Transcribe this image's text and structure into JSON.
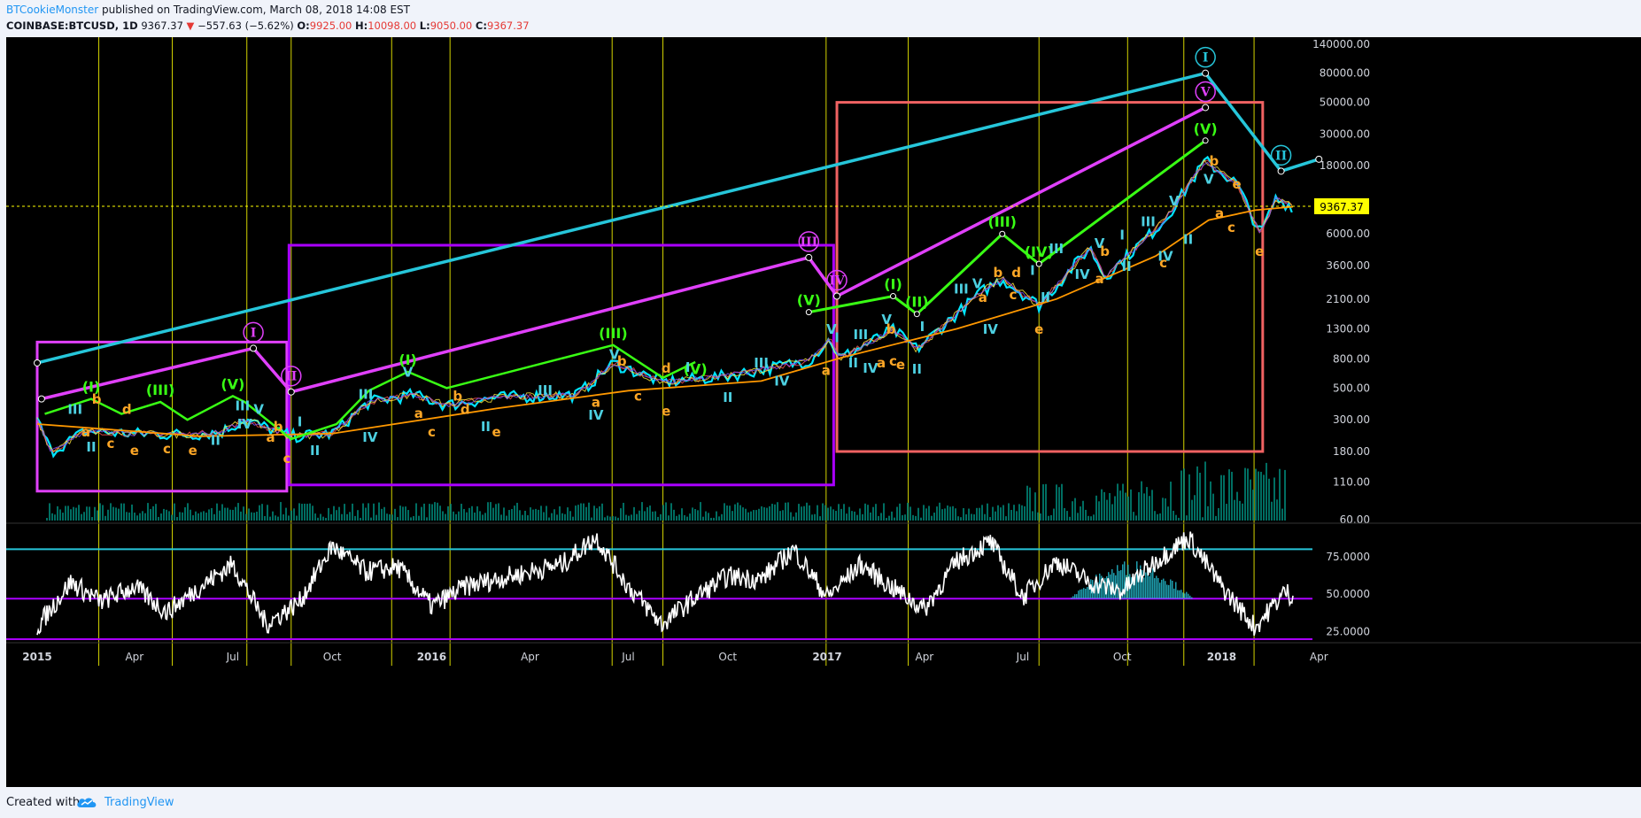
{
  "header": {
    "author": "BTCookieMonster",
    "published_text": " published on TradingView.com, March 08, 2018 14:08 EST",
    "symbol": "COINBASE:BTCUSD, 1D",
    "last": "9367.37",
    "change_arrow": "▼",
    "change": "−557.63 (−5.62%)",
    "o_label": "O:",
    "o_value": "9925.00",
    "h_label": "H:",
    "h_value": "10098.00",
    "l_label": "L:",
    "l_value": "9050.00",
    "c_label": "C:",
    "c_value": "9367.37"
  },
  "footer": {
    "created_with": "Created with",
    "brand": "TradingView"
  },
  "colors": {
    "background": "#000000",
    "price_ema_1": "#00e5ff",
    "price_ema_2": "#ff9800",
    "wave_cycle": "#26c6da",
    "wave_primary": "#e040fb",
    "wave_intermediate": "#39ff14",
    "wave_minor": "#4dd0e1",
    "wave_abc": "#ffa726",
    "box_primary": "#e040fb",
    "box_violet": "#aa00ff",
    "box_red": "#f06262",
    "rsi_line": "#ffffff",
    "rsi_levels": "#26c6da",
    "rsi_low": "#aa00ff",
    "vlines": "#d4d400",
    "last_price_label": "#ffff00",
    "volume": "#00897b"
  },
  "chart_data": [
    {
      "type": "line",
      "title": "",
      "scale": "log",
      "ylabel": "",
      "xlabel": "",
      "y_ticks": [
        "60.00",
        "110.00",
        "180.00",
        "300.00",
        "500.00",
        "800.00",
        "1300.00",
        "2100.00",
        "3600.00",
        "6000.00",
        "18000.00",
        "30000.00",
        "50000.00",
        "80000.00",
        "140000.00"
      ],
      "x_ticks": [
        "2015",
        "Apr",
        "Jul",
        "Oct",
        "2016",
        "Apr",
        "Jul",
        "Oct",
        "2017",
        "Apr",
        "Jul",
        "Oct",
        "2018",
        "Apr"
      ],
      "last_price_label": "9367.37",
      "grid": false,
      "price_series": {
        "name": "COINBASE:BTCUSD",
        "x": [
          "2015-01-01",
          "2015-01-14",
          "2015-02-15",
          "2015-04-01",
          "2015-05-20",
          "2015-06-20",
          "2015-07-12",
          "2015-08-24",
          "2015-10-01",
          "2015-11-04",
          "2015-12-15",
          "2016-01-15",
          "2016-03-01",
          "2016-05-15",
          "2016-06-17",
          "2016-08-02",
          "2016-10-01",
          "2016-12-15",
          "2017-01-04",
          "2017-01-12",
          "2017-03-03",
          "2017-03-25",
          "2017-05-25",
          "2017-06-12",
          "2017-07-16",
          "2017-09-01",
          "2017-09-15",
          "2017-11-08",
          "2017-12-17",
          "2018-01-15",
          "2018-02-06",
          "2018-02-20",
          "2018-03-08"
        ],
        "values": [
          300,
          180,
          250,
          240,
          237,
          246,
          300,
          230,
          240,
          400,
          450,
          380,
          430,
          450,
          750,
          550,
          610,
          780,
          1100,
          800,
          1280,
          940,
          2400,
          2900,
          1900,
          4800,
          3000,
          7300,
          19500,
          13500,
          6000,
          10500,
          9367
        ]
      },
      "ema_series": [
        {
          "name": "",
          "color": "#ff9800",
          "x": [
            "2015-01-01",
            "2015-06-01",
            "2015-10-01",
            "2016-03-01",
            "2016-07-01",
            "2016-11-01",
            "2017-01-15",
            "2017-05-01",
            "2017-08-01",
            "2017-11-01",
            "2017-12-20",
            "2018-02-01",
            "2018-03-08"
          ],
          "values": [
            280,
            230,
            240,
            360,
            480,
            560,
            820,
            1300,
            2100,
            4200,
            7500,
            8800,
            9300
          ]
        }
      ],
      "wave_counts": [
        {
          "degree": "Cycle",
          "color": "#26c6da",
          "x": [
            "2015-01-01",
            "2017-12-17",
            "2018-02-25",
            "2018-04-01"
          ],
          "values": [
            750,
            80000,
            16500,
            20000
          ],
          "labels": [
            "",
            "I",
            "II",
            ""
          ]
        },
        {
          "degree": "Primary",
          "color": "#e040fb",
          "x": [
            "2015-01-05",
            "2015-07-20",
            "2015-08-24",
            "2016-12-15",
            "2017-01-10",
            "2017-12-17"
          ],
          "values": [
            420,
            950,
            470,
            4100,
            2200,
            46000
          ],
          "labels": [
            "",
            "I",
            "II",
            "III",
            "IV",
            "V"
          ]
        },
        {
          "degree": "Intermediate",
          "color": "#39ff14",
          "points": [
            [
              "2016-12-15",
              "1700",
              "(V)"
            ],
            [
              "2017-03-03",
              "2200",
              "(I)"
            ],
            [
              "2017-03-25",
              "1650",
              "(II)"
            ],
            [
              "2017-06-12",
              "6000",
              "(III)"
            ],
            [
              "2017-07-16",
              "3700",
              "(IV)"
            ],
            [
              "2017-12-17",
              "27000",
              "(V)"
            ]
          ],
          "labels": [
            "(I)",
            "(II)",
            "(III)",
            "(IV)",
            "(V)"
          ]
        },
        {
          "degree": "Minor",
          "color": "#4dd0e1",
          "labels": [
            "I",
            "II",
            "III",
            "IV",
            "V"
          ]
        },
        {
          "degree": "Correction",
          "color": "#ffa726",
          "labels": [
            "a",
            "b",
            "c",
            "d",
            "e"
          ]
        }
      ],
      "boxes": [
        {
          "color": "#e040fb",
          "x": [
            "2015-01-01",
            "2015-08-20"
          ],
          "y": [
            95,
            1050
          ]
        },
        {
          "color": "#aa00ff",
          "x": [
            "2015-08-22",
            "2017-01-07"
          ],
          "y": [
            105,
            5000
          ]
        },
        {
          "color": "#f06262",
          "x": [
            "2017-01-10",
            "2018-02-08"
          ],
          "y": [
            180,
            50000
          ]
        }
      ],
      "vertical_markers": [
        "2015-02-27",
        "2015-05-06",
        "2015-07-14",
        "2015-08-24",
        "2015-11-25",
        "2016-01-18",
        "2016-06-16",
        "2016-08-02",
        "2016-12-31",
        "2017-03-17",
        "2017-07-16",
        "2017-10-06",
        "2017-11-27",
        "2018-01-31"
      ]
    },
    {
      "type": "line",
      "title": "",
      "ylim": [
        20,
        95
      ],
      "y_ticks": [
        "25.0000",
        "50.0000",
        "75.0000"
      ],
      "levels": [
        80,
        47,
        20
      ],
      "series": [
        {
          "name": "",
          "x": [
            "2015-01-01",
            "2015-02-01",
            "2015-03-01",
            "2015-04-01",
            "2015-05-01",
            "2015-06-01",
            "2015-07-01",
            "2015-08-01",
            "2015-09-01",
            "2015-10-01",
            "2015-11-01",
            "2015-12-01",
            "2016-01-01",
            "2016-02-01",
            "2016-03-01",
            "2016-04-01",
            "2016-05-01",
            "2016-06-01",
            "2016-07-01",
            "2016-08-01",
            "2016-09-01",
            "2016-10-01",
            "2016-11-01",
            "2016-12-01",
            "2017-01-01",
            "2017-02-01",
            "2017-03-01",
            "2017-04-01",
            "2017-05-01",
            "2017-06-01",
            "2017-07-01",
            "2017-08-01",
            "2017-09-01",
            "2017-10-01",
            "2017-11-01",
            "2017-12-01",
            "2018-01-01",
            "2018-02-01",
            "2018-03-01",
            "2018-03-08"
          ],
          "values": [
            28,
            58,
            45,
            55,
            38,
            55,
            70,
            30,
            45,
            82,
            65,
            68,
            42,
            55,
            60,
            65,
            70,
            88,
            55,
            30,
            48,
            62,
            60,
            80,
            48,
            70,
            55,
            40,
            72,
            85,
            48,
            72,
            58,
            52,
            72,
            88,
            55,
            28,
            52,
            48
          ]
        }
      ]
    }
  ]
}
